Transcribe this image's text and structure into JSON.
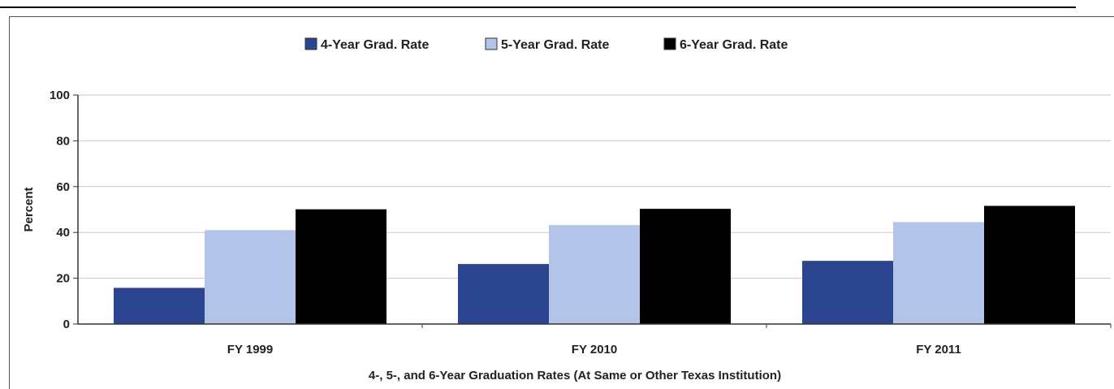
{
  "chart_data": {
    "type": "bar",
    "categories": [
      "FY 1999",
      "FY 2010",
      "FY 2011"
    ],
    "series": [
      {
        "name": "4-Year Grad. Rate",
        "values": [
          15.8,
          26.2,
          27.6
        ],
        "color": "#2b4590"
      },
      {
        "name": "5-Year Grad. Rate",
        "values": [
          41.0,
          43.2,
          44.5
        ],
        "color": "#b4c3e8"
      },
      {
        "name": "6-Year Grad. Rate",
        "values": [
          50.1,
          50.3,
          51.6
        ],
        "color": "#000000"
      }
    ],
    "title": "",
    "xlabel": "4-, 5-, and 6-Year Graduation Rates (At Same or Other Texas Institution)",
    "ylabel": "Percent",
    "ylim": [
      0,
      100
    ],
    "yticks": [
      "0",
      "20",
      "40",
      "60",
      "80",
      "100"
    ],
    "grid": true,
    "legend_position": "top"
  }
}
